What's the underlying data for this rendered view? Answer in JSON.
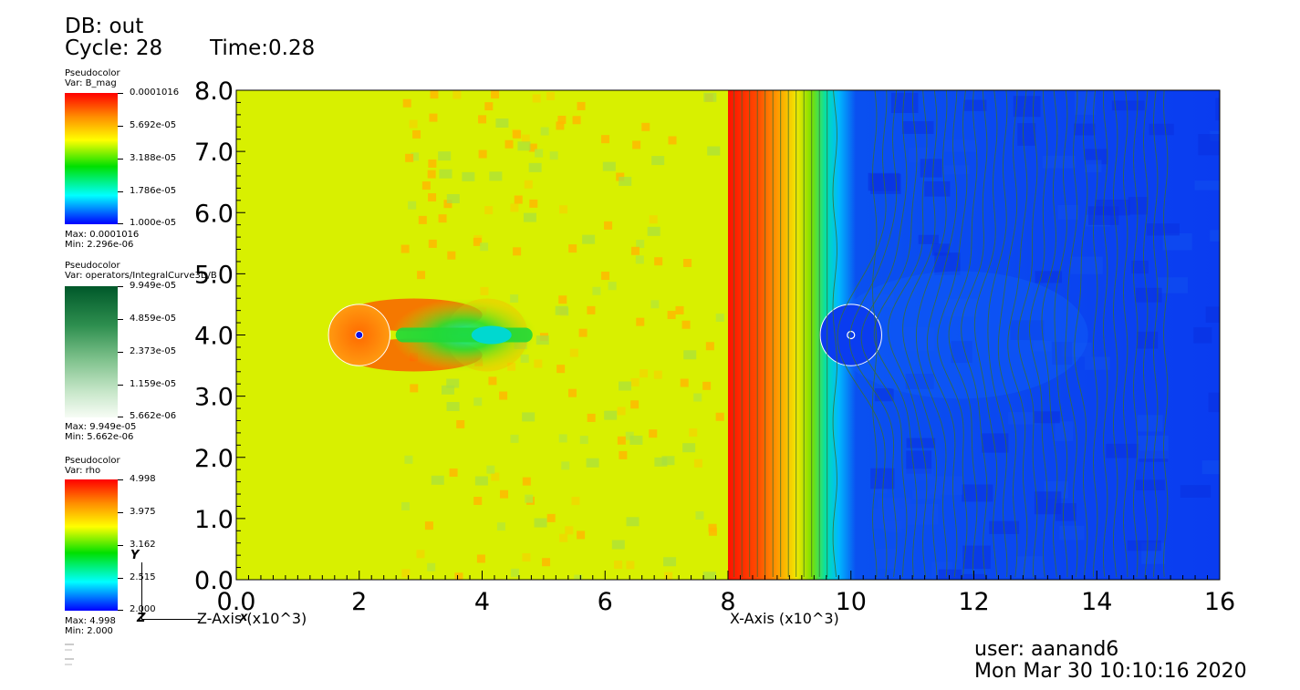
{
  "header": {
    "db": "DB: out",
    "cycle": "Cycle: 28",
    "time": "Time:0.28"
  },
  "legends": [
    {
      "plot": "Pseudocolor",
      "var": "Var: B_mag",
      "ticks": [
        "0.0001016",
        "5.692e-05",
        "3.188e-05",
        "1.786e-05",
        "1.000e-05"
      ],
      "max": "Max:  0.0001016",
      "min": "Min:  2.296e-06",
      "colormap": "hot"
    },
    {
      "plot": "Pseudocolor",
      "var": "Var: operators/IntegralCurve3D/B",
      "ticks": [
        "9.949e-05",
        "4.859e-05",
        "2.373e-05",
        "1.159e-05",
        "5.662e-06"
      ],
      "max": "Max:  9.949e-05",
      "min": "Min:  5.662e-06",
      "colormap": "greens"
    },
    {
      "plot": "Pseudocolor",
      "var": "Var: rho",
      "ticks": [
        "4.998",
        "3.975",
        "3.162",
        "2.515",
        "2.000"
      ],
      "max": "Max:  4.998",
      "min": "Min:  2.000",
      "colormap": "hot"
    }
  ],
  "triad": {
    "y": "Y",
    "x": "x",
    "z": "Z"
  },
  "footer": {
    "user": "user: aanand6",
    "date": "Mon Mar 30 10:10:16 2020"
  },
  "chart_data": {
    "type": "heatmap",
    "panels": [
      {
        "name": "left-panel",
        "variable": "B_mag",
        "xlabel": "Z-Axis (x10^3)",
        "xlim": [
          0,
          8
        ],
        "xticks": [
          "0.0",
          "2",
          "4",
          "6",
          "8"
        ],
        "circle_center": [
          2,
          4
        ],
        "circle_radius": 0.5
      },
      {
        "name": "right-panel",
        "variable": "rho",
        "xlabel": "X-Axis (x10^3)",
        "xlim": [
          8,
          16
        ],
        "xticks": [
          "10",
          "12",
          "14",
          "16"
        ],
        "circle_center": [
          10,
          4
        ],
        "circle_radius": 0.5
      }
    ],
    "ylabel": "",
    "ylim": [
      0,
      8
    ],
    "yticks": [
      "0.0",
      "1.0",
      "2.0",
      "3.0",
      "4.0",
      "5.0",
      "6.0",
      "7.0",
      "8.0"
    ],
    "colors": {
      "background_field": "#d8f000",
      "low_field": "#0a3cf0",
      "high_field": "#ff1a00",
      "streamline": "#3c6e2e"
    }
  }
}
